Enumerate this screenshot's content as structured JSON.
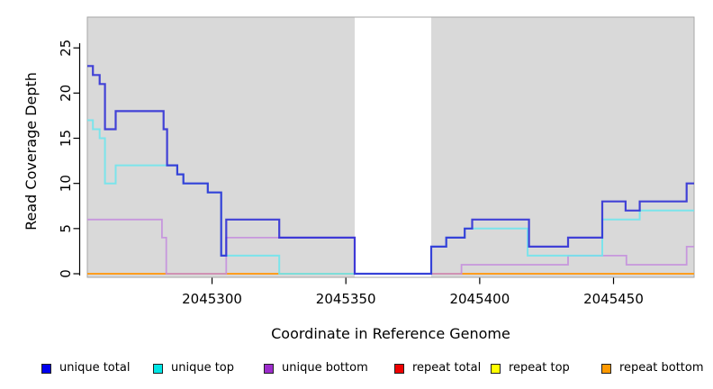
{
  "chart_data": {
    "type": "line",
    "step_style": "post",
    "title": "",
    "xlabel": "Coordinate in Reference Genome",
    "ylabel": "Read Coverage Depth",
    "xlim": [
      2045253.4,
      2045480.1
    ],
    "ylim": [
      -0.4,
      28.41
    ],
    "x_ticks": [
      2045300,
      2045350,
      2045400,
      2045450
    ],
    "x_tick_labels": [
      "2045300",
      "2045350",
      "2045400",
      "2045450"
    ],
    "y_ticks": [
      0,
      5,
      10,
      15,
      20,
      25
    ],
    "y_tick_labels": [
      "0",
      "5",
      "10",
      "15",
      "20",
      "25"
    ],
    "grid": false,
    "legend_position": "bottom",
    "panel_bg": "#d9d9d9",
    "panel_border": "#a6a6a6",
    "gap_region": {
      "start": 2045353.3,
      "end": 2045381.9,
      "color": "#ffffff"
    },
    "series": [
      {
        "name": "repeat total",
        "line_color": "#cc1111",
        "legend_color": "#ee0000",
        "width": 1.6,
        "opacity": 1,
        "steps": [
          [
            2045253.4,
            0
          ]
        ]
      },
      {
        "name": "repeat top",
        "line_color": "#f2f200",
        "legend_color": "#ffff00",
        "width": 1.6,
        "opacity": 1,
        "steps": [
          [
            2045253.4,
            0
          ]
        ]
      },
      {
        "name": "repeat bottom",
        "line_color": "#ff9d1e",
        "legend_color": "#ff9900",
        "width": 2.0,
        "opacity": 1,
        "steps": [
          [
            2045253.4,
            0
          ]
        ]
      },
      {
        "name": "unique bottom",
        "line_color": "#c48fdd",
        "legend_color": "#9d2ccc",
        "width": 1.8,
        "opacity": 0.9,
        "steps": [
          [
            2045253.4,
            6
          ],
          [
            2045281.3,
            4
          ],
          [
            2045282.9,
            0
          ],
          [
            2045305.3,
            4
          ],
          [
            2045353.3,
            0
          ],
          [
            2045393.2,
            1
          ],
          [
            2045433.0,
            2
          ],
          [
            2045454.8,
            1
          ],
          [
            2045477.3,
            3
          ]
        ]
      },
      {
        "name": "unique top",
        "line_color": "#70e4ec",
        "legend_color": "#00e5e5",
        "width": 2.0,
        "opacity": 0.9,
        "steps": [
          [
            2045253.4,
            17
          ],
          [
            2045255.5,
            16
          ],
          [
            2045258.0,
            15
          ],
          [
            2045260.0,
            10
          ],
          [
            2045264.0,
            12
          ],
          [
            2045287.0,
            11
          ],
          [
            2045289.3,
            10
          ],
          [
            2045298.4,
            9
          ],
          [
            2045303.4,
            2
          ],
          [
            2045325.1,
            0
          ],
          [
            2045381.9,
            3
          ],
          [
            2045387.5,
            4
          ],
          [
            2045394.4,
            5
          ],
          [
            2045417.9,
            2
          ],
          [
            2045445.8,
            6
          ],
          [
            2045459.8,
            7
          ]
        ]
      },
      {
        "name": "unique total",
        "line_color": "#2b2bd5",
        "legend_color": "#0000ee",
        "width": 2.2,
        "opacity": 0.88,
        "steps": [
          [
            2045253.4,
            23
          ],
          [
            2045255.5,
            22
          ],
          [
            2045258.0,
            21
          ],
          [
            2045260.0,
            16
          ],
          [
            2045264.0,
            18
          ],
          [
            2045281.9,
            16
          ],
          [
            2045283.2,
            12
          ],
          [
            2045287.0,
            11
          ],
          [
            2045289.3,
            10
          ],
          [
            2045298.4,
            9
          ],
          [
            2045303.4,
            2
          ],
          [
            2045305.3,
            6
          ],
          [
            2045325.1,
            4
          ],
          [
            2045353.3,
            0
          ],
          [
            2045381.9,
            3
          ],
          [
            2045387.5,
            4
          ],
          [
            2045394.4,
            5
          ],
          [
            2045397.2,
            6
          ],
          [
            2045418.4,
            3
          ],
          [
            2045433.0,
            4
          ],
          [
            2045445.8,
            8
          ],
          [
            2045454.5,
            7
          ],
          [
            2045459.8,
            8
          ],
          [
            2045477.3,
            10
          ]
        ]
      }
    ],
    "legend": [
      {
        "label": "unique total",
        "color": "#0000ee"
      },
      {
        "label": "unique top",
        "color": "#00e5e5"
      },
      {
        "label": "unique bottom",
        "color": "#9d2ccc"
      },
      {
        "label": "repeat total",
        "color": "#ee0000"
      },
      {
        "label": "repeat top",
        "color": "#ffff00"
      },
      {
        "label": "repeat bottom",
        "color": "#ff9900"
      }
    ]
  }
}
